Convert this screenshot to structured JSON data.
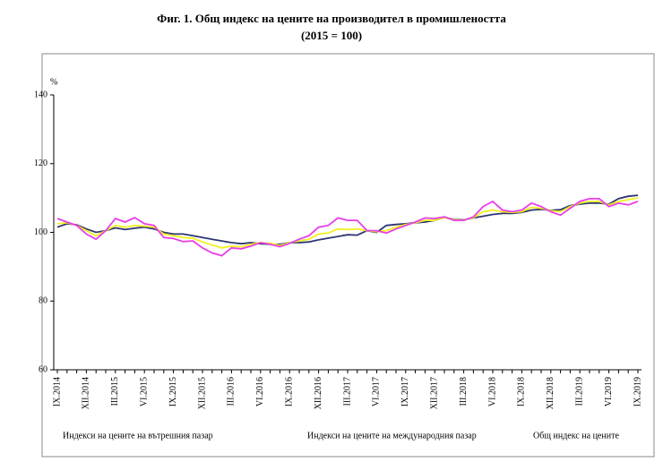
{
  "chart_data": {
    "type": "line",
    "title": "Фиг. 1. Общ индекс на цените на производител в промишлеността",
    "subtitle": "(2015 = 100)",
    "y_label": "%",
    "categories": [
      "IX.2014",
      null,
      null,
      "XII.2014",
      null,
      null,
      "III.2015",
      null,
      null,
      "VI.2015",
      null,
      null,
      "IX.2015",
      null,
      null,
      "XII.2015",
      null,
      null,
      "III.2016",
      null,
      null,
      "VI.2016",
      null,
      null,
      "IX.2016",
      null,
      null,
      "XII.2016",
      null,
      null,
      "III.2017",
      null,
      null,
      "VI.2017",
      null,
      null,
      "IX.2017",
      null,
      null,
      "XII.2017",
      null,
      null,
      "III.2018",
      null,
      null,
      "VI.2018",
      null,
      null,
      "IX.2018",
      null,
      null,
      "XII.2018",
      null,
      null,
      "III.2019",
      null,
      null,
      "VI.2019",
      null,
      null,
      "IX.2019"
    ],
    "series": [
      {
        "name": "Индекси на цените на вътрешния пазар",
        "color": "#2e3570",
        "values": [
          101.5,
          102.5,
          102.2,
          101,
          100,
          100.5,
          101.3,
          100.8,
          101.2,
          101.5,
          101,
          100,
          99.5,
          99.5,
          99,
          98.5,
          98,
          97.5,
          97,
          96.7,
          97,
          96.7,
          96.5,
          96.5,
          97,
          97,
          97.2,
          97.8,
          98.3,
          98.8,
          99.3,
          99.2,
          100.5,
          100,
          102,
          102.3,
          102.5,
          102.8,
          103,
          103.5,
          104.3,
          103.8,
          103.6,
          104.2,
          104.7,
          105.2,
          105.5,
          105.5,
          105.8,
          106.5,
          106.7,
          106.4,
          106.6,
          107.8,
          108.2,
          108.5,
          108.5,
          108.2,
          109.8,
          110.5,
          110.8
        ]
      },
      {
        "name": "Индекси на цените на международния пазар",
        "color": "#e83ee8",
        "values": [
          104,
          103,
          102,
          99.5,
          98,
          100.5,
          104,
          103,
          104.3,
          102.5,
          102,
          98.5,
          98.2,
          97.3,
          97.5,
          95.5,
          94,
          93.2,
          95.5,
          95.2,
          96,
          97,
          96.5,
          95.8,
          96.8,
          98,
          99,
          101.5,
          102,
          104.2,
          103.5,
          103.5,
          100.5,
          100.5,
          99.8,
          101,
          102,
          103,
          104.2,
          104,
          104.5,
          103.5,
          103.5,
          104.5,
          107.5,
          109,
          106.5,
          106,
          106.5,
          108.5,
          107.5,
          106,
          105,
          107,
          109,
          109.8,
          109.8,
          107.5,
          108.5,
          108,
          109
        ]
      },
      {
        "name": "Общ индекс на цените",
        "color": "#f0f020",
        "values": [
          102.5,
          102.8,
          102,
          100.5,
          99,
          100.5,
          102,
          101.5,
          102,
          101.8,
          101.5,
          99.5,
          99,
          98.5,
          98.3,
          97.2,
          96.3,
          95.5,
          96,
          95.8,
          96.5,
          97,
          96.8,
          96.2,
          97,
          97.5,
          98,
          99.5,
          99.8,
          101,
          100.8,
          101,
          100.5,
          100.2,
          100.5,
          101.5,
          102.3,
          102.8,
          103.5,
          103.5,
          104.3,
          103.7,
          103.5,
          104.3,
          106,
          106.5,
          106,
          105.8,
          106,
          107.3,
          107,
          106.3,
          106,
          107.5,
          108.5,
          109,
          109,
          108,
          109,
          109.5,
          110
        ]
      }
    ],
    "ylim": [
      60,
      140
    ],
    "yticks": [
      60,
      80,
      100,
      120,
      140
    ],
    "grid": false
  }
}
